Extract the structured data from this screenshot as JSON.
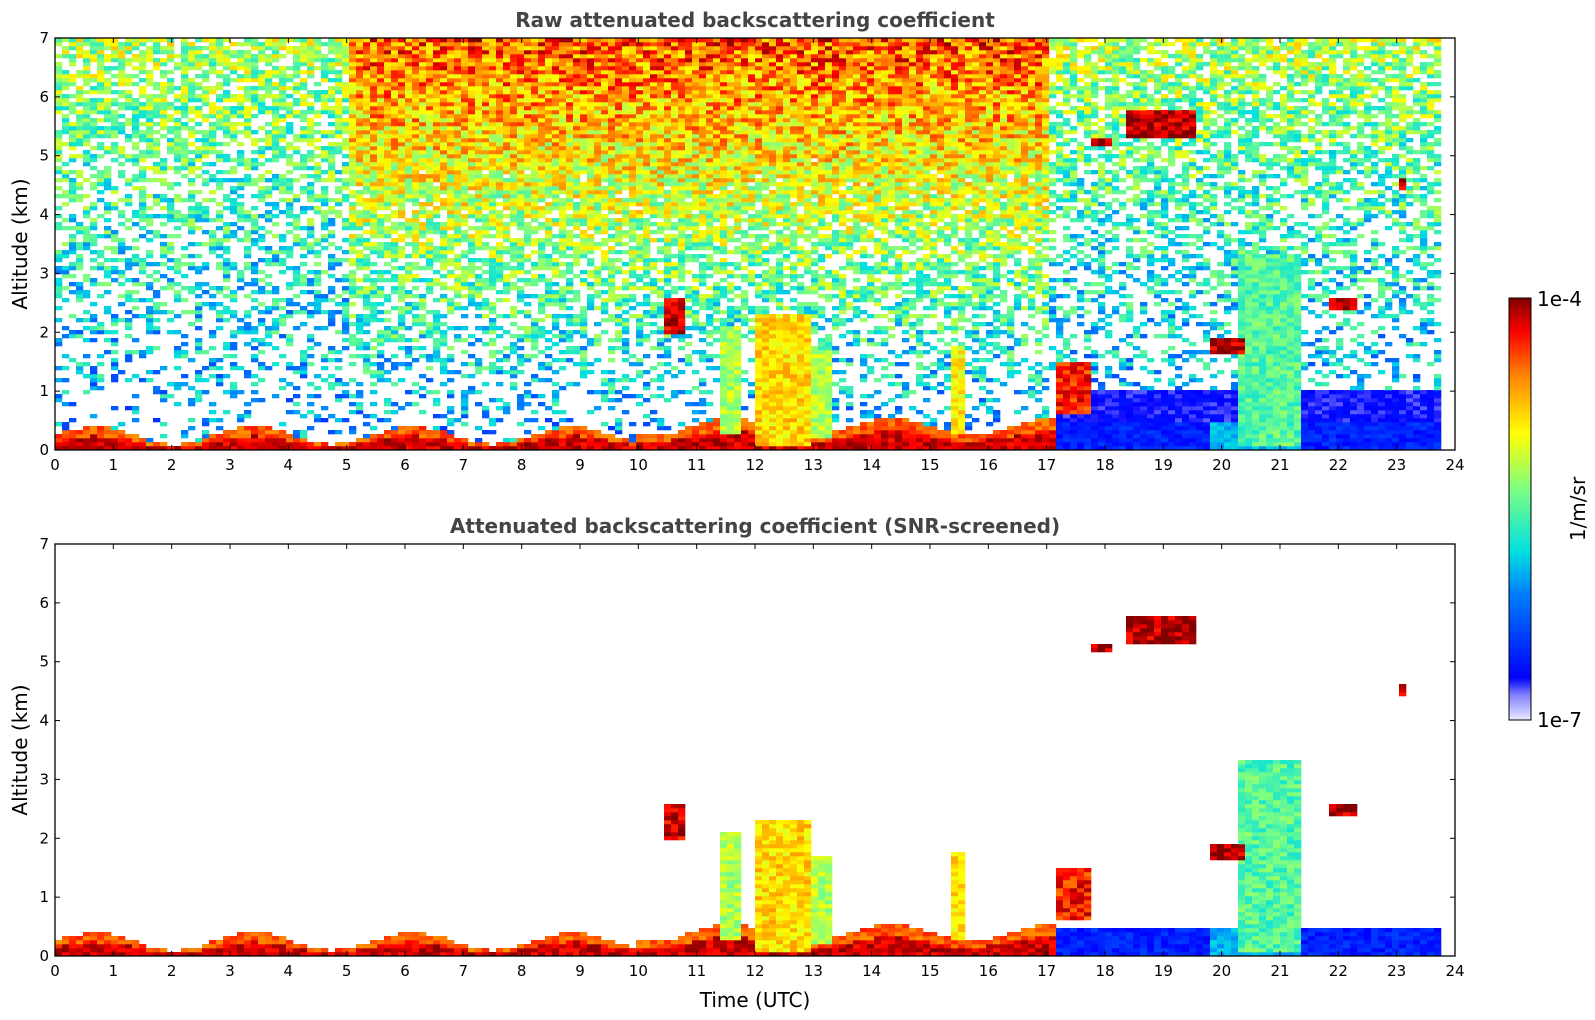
{
  "chart_data": [
    {
      "type": "heatmap",
      "title": "Raw attenuated backscattering coefficient",
      "xlabel": "",
      "ylabel": "Altitude (km)",
      "xlim": [
        0,
        24
      ],
      "ylim": [
        0,
        7
      ],
      "xticks": [
        "0",
        "1",
        "2",
        "3",
        "4",
        "5",
        "6",
        "7",
        "8",
        "9",
        "10",
        "11",
        "12",
        "13",
        "14",
        "15",
        "16",
        "17",
        "18",
        "19",
        "20",
        "21",
        "22",
        "23",
        "24"
      ],
      "yticks": [
        "0",
        "1",
        "2",
        "3",
        "4",
        "5",
        "6",
        "7"
      ],
      "screened": false,
      "features": [
        {
          "name": "boundary layer aerosol",
          "time_start": 0,
          "time_end": 17.2,
          "altitude_top_km": 0.5
        },
        {
          "name": "convective cloud",
          "time_start": 12.0,
          "time_end": 12.9,
          "altitude_top_km": 2.3
        },
        {
          "name": "low cloud cluster",
          "time_start": 11.4,
          "time_end": 11.8,
          "altitude_top_km": 2.2
        },
        {
          "name": "clouds",
          "time_start": 19.8,
          "time_end": 21.4,
          "altitude_top_km": 3.5
        },
        {
          "name": "mid-level cloud",
          "time_start": 18.4,
          "time_end": 19.5,
          "altitude_top_km": 5.8
        },
        {
          "name": "mid-level cloud",
          "time_start": 17.8,
          "time_end": 18.1,
          "altitude_top_km": 5.3
        },
        {
          "name": "cloud patch",
          "time_start": 23.0,
          "time_end": 23.2,
          "altitude_top_km": 4.6
        },
        {
          "name": "cloud patch",
          "time_start": 21.9,
          "time_end": 22.3,
          "altitude_top_km": 2.6
        },
        {
          "name": "nighttime low-noise layer",
          "time_start": 17.2,
          "time_end": 23.8,
          "altitude_top_km": 1.0
        }
      ]
    },
    {
      "type": "heatmap",
      "title": "Attenuated backscattering coefficient (SNR-screened)",
      "xlabel": "Time (UTC)",
      "ylabel": "Altitude (km)",
      "xlim": [
        0,
        24
      ],
      "ylim": [
        0,
        7
      ],
      "xticks": [
        "0",
        "1",
        "2",
        "3",
        "4",
        "5",
        "6",
        "7",
        "8",
        "9",
        "10",
        "11",
        "12",
        "13",
        "14",
        "15",
        "16",
        "17",
        "18",
        "19",
        "20",
        "21",
        "22",
        "23",
        "24"
      ],
      "yticks": [
        "0",
        "1",
        "2",
        "3",
        "4",
        "5",
        "6",
        "7"
      ],
      "screened": true
    }
  ],
  "colorbar": {
    "max_label": "1e-4",
    "min_label": "1e-7",
    "unit_label": "1/m/sr",
    "colormap": "jet",
    "scale": "log"
  }
}
